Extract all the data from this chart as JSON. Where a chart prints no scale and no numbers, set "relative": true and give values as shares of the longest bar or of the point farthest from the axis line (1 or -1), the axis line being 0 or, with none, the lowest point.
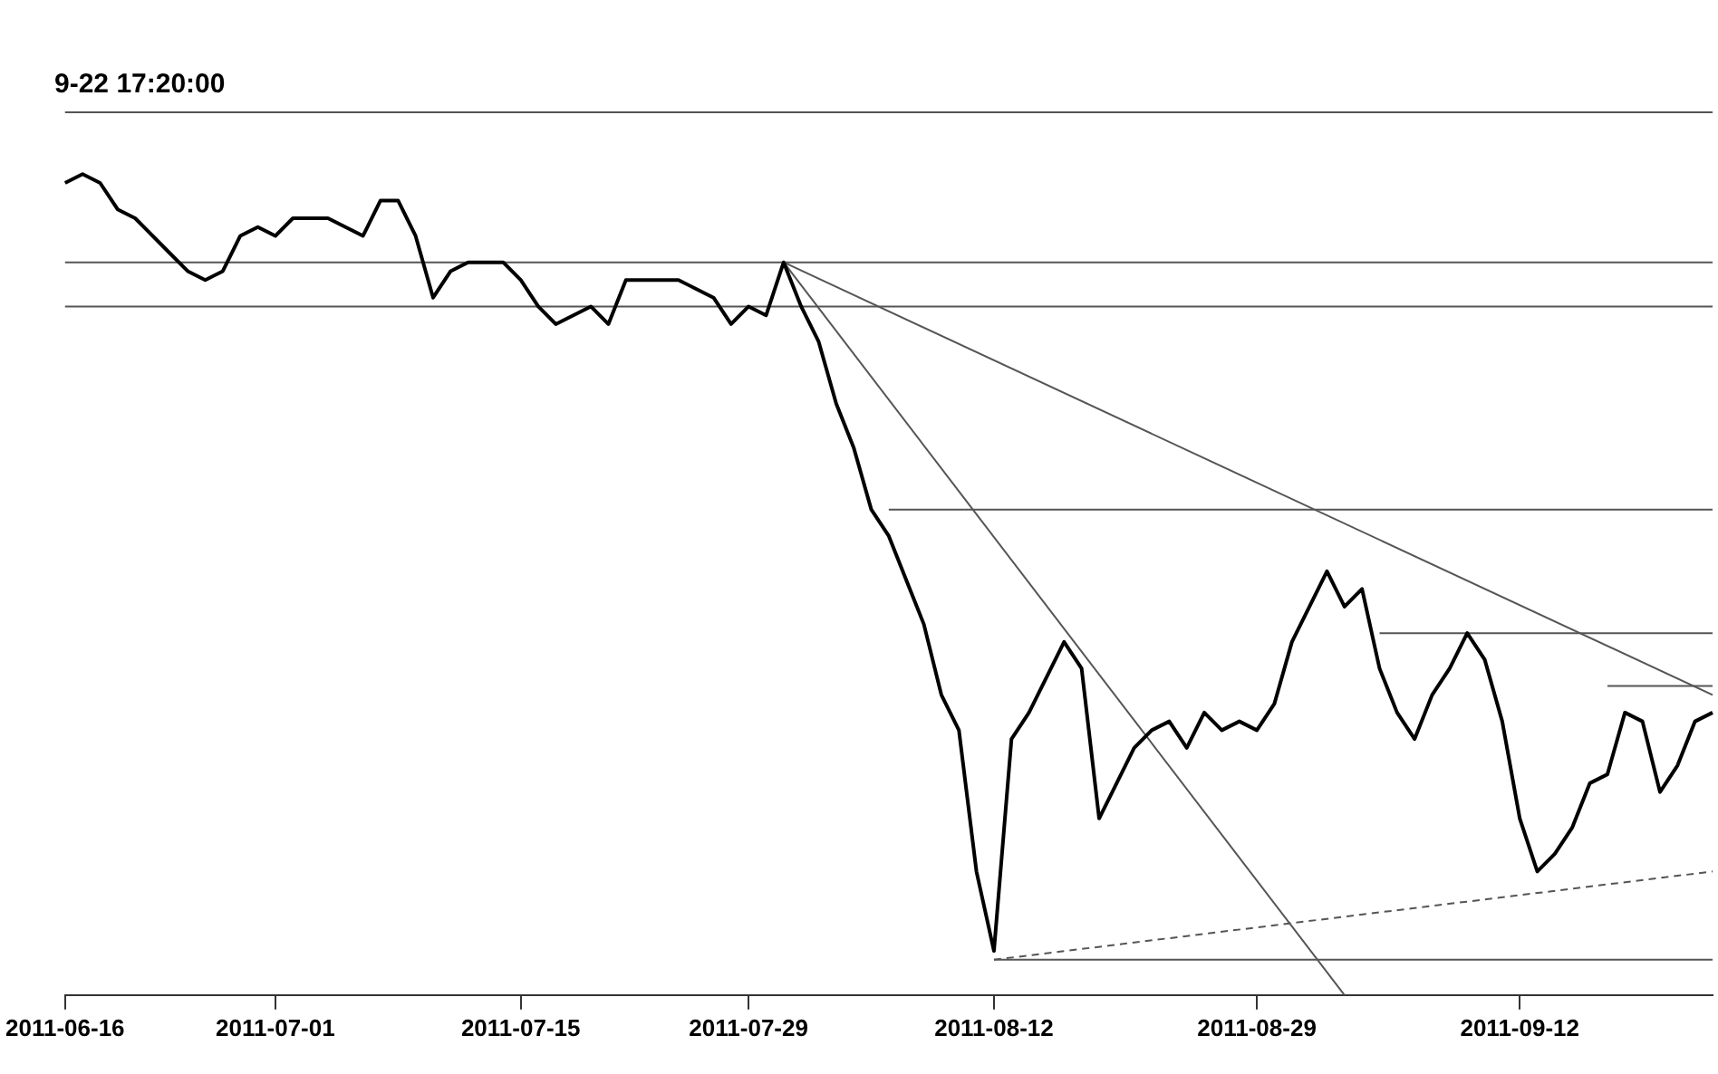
{
  "chart_data": {
    "type": "line",
    "title": "9-22 17:20:00",
    "relative": true,
    "legend": false,
    "marker": "none",
    "line_style": "solid",
    "categories": [
      "2011-06-16",
      null,
      null,
      null,
      null,
      null,
      null,
      null,
      null,
      null,
      null,
      null,
      "2011-07-01",
      null,
      null,
      null,
      null,
      null,
      null,
      null,
      null,
      null,
      null,
      null,
      null,
      null,
      "2011-07-15",
      null,
      null,
      null,
      null,
      null,
      null,
      null,
      null,
      null,
      null,
      null,
      null,
      "2011-07-29",
      null,
      null,
      null,
      null,
      null,
      null,
      null,
      null,
      null,
      null,
      null,
      null,
      null,
      "2011-08-12",
      null,
      null,
      null,
      null,
      null,
      null,
      null,
      null,
      null,
      null,
      null,
      null,
      null,
      null,
      "2011-08-29",
      null,
      null,
      null,
      null,
      null,
      null,
      null,
      null,
      null,
      null,
      null,
      null,
      null,
      null,
      "2011-09-12",
      null,
      null,
      null,
      null,
      null,
      null,
      null,
      null,
      null,
      null,
      null
    ],
    "series": [
      {
        "color": "#000000",
        "values": [
          0.92,
          0.93,
          0.92,
          0.89,
          0.88,
          0.86,
          0.84,
          0.82,
          0.81,
          0.82,
          0.86,
          0.87,
          0.86,
          0.88,
          0.88,
          0.88,
          0.87,
          0.86,
          0.9,
          0.9,
          0.86,
          0.79,
          0.82,
          0.83,
          0.83,
          0.83,
          0.81,
          0.78,
          0.76,
          0.77,
          0.78,
          0.76,
          0.81,
          0.81,
          0.81,
          0.81,
          0.8,
          0.79,
          0.76,
          0.78,
          0.77,
          0.83,
          0.78,
          0.74,
          0.67,
          0.62,
          0.55,
          0.52,
          0.47,
          0.42,
          0.34,
          0.3,
          0.14,
          0.05,
          0.29,
          0.32,
          0.36,
          0.4,
          0.37,
          0.2,
          0.24,
          0.28,
          0.3,
          0.31,
          0.28,
          0.32,
          0.3,
          0.31,
          0.3,
          0.33,
          0.4,
          0.44,
          0.48,
          0.44,
          0.46,
          0.37,
          0.32,
          0.29,
          0.34,
          0.37,
          0.41,
          0.38,
          0.31,
          0.2,
          0.14,
          0.16,
          0.19,
          0.24,
          0.25,
          0.32,
          0.31,
          0.23,
          0.26,
          0.31,
          0.32
        ]
      },
      {
        "color": "#555555",
        "values": [
          null,
          null,
          null,
          null,
          null,
          null,
          null,
          null,
          null,
          null,
          null,
          null,
          null,
          null,
          null,
          null,
          null,
          null,
          null,
          null,
          null,
          null,
          null,
          null,
          null,
          null,
          null,
          null,
          null,
          null,
          null,
          null,
          null,
          null,
          null,
          null,
          null,
          null,
          null,
          null,
          null,
          null,
          null,
          null,
          null,
          null,
          null,
          0.55,
          null,
          null,
          null,
          null,
          null,
          null,
          null,
          null,
          null,
          null,
          null,
          null,
          null,
          null,
          null,
          null,
          null,
          null,
          null,
          null,
          null,
          null,
          null,
          null,
          null,
          null,
          null,
          null,
          null,
          null,
          null,
          null,
          null,
          null,
          null,
          null,
          null,
          null,
          null,
          null,
          null,
          null,
          null,
          null,
          null,
          null,
          0.55
        ]
      },
      {
        "color": "#555555",
        "values": [
          null,
          null,
          null,
          null,
          null,
          null,
          null,
          null,
          null,
          null,
          null,
          null,
          null,
          null,
          null,
          null,
          null,
          null,
          null,
          null,
          null,
          null,
          null,
          null,
          null,
          null,
          null,
          null,
          null,
          null,
          null,
          null,
          null,
          null,
          null,
          null,
          null,
          null,
          null,
          null,
          null,
          null,
          null,
          null,
          null,
          null,
          null,
          null,
          null,
          null,
          null,
          null,
          null,
          null,
          null,
          null,
          null,
          null,
          null,
          null,
          null,
          null,
          null,
          null,
          null,
          null,
          null,
          null,
          null,
          null,
          null,
          null,
          null,
          null,
          null,
          0.41,
          null,
          null,
          null,
          null,
          null,
          null,
          null,
          null,
          null,
          null,
          null,
          null,
          null,
          null,
          null,
          null,
          null,
          null,
          0.41
        ]
      },
      {
        "color": "#555555",
        "values": [
          null,
          null,
          null,
          null,
          null,
          null,
          null,
          null,
          null,
          null,
          null,
          null,
          null,
          null,
          null,
          null,
          null,
          null,
          null,
          null,
          null,
          null,
          null,
          null,
          null,
          null,
          null,
          null,
          null,
          null,
          null,
          null,
          null,
          null,
          null,
          null,
          null,
          null,
          null,
          null,
          null,
          null,
          null,
          null,
          null,
          null,
          null,
          null,
          null,
          null,
          null,
          null,
          null,
          null,
          null,
          null,
          null,
          null,
          null,
          null,
          null,
          null,
          null,
          null,
          null,
          null,
          null,
          null,
          null,
          null,
          null,
          null,
          null,
          null,
          null,
          null,
          null,
          null,
          null,
          null,
          null,
          null,
          null,
          null,
          null,
          null,
          null,
          null,
          0.35,
          null,
          null,
          null,
          null,
          null,
          0.35
        ]
      },
      {
        "color": "#555555",
        "values": [
          null,
          null,
          null,
          null,
          null,
          null,
          null,
          null,
          null,
          null,
          null,
          null,
          null,
          null,
          null,
          null,
          null,
          null,
          null,
          null,
          null,
          null,
          null,
          null,
          null,
          null,
          null,
          null,
          null,
          null,
          null,
          null,
          null,
          null,
          null,
          null,
          null,
          null,
          null,
          null,
          null,
          null,
          null,
          null,
          null,
          null,
          null,
          null,
          null,
          null,
          null,
          null,
          null,
          0.04,
          null,
          null,
          null,
          null,
          null,
          null,
          null,
          null,
          null,
          null,
          null,
          null,
          null,
          null,
          null,
          null,
          null,
          null,
          null,
          null,
          null,
          null,
          null,
          null,
          null,
          null,
          null,
          null,
          null,
          null,
          null,
          null,
          null,
          null,
          null,
          null,
          null,
          null,
          null,
          null,
          0.04
        ]
      },
      {
        "color": "#555555",
        "values": [
          null,
          null,
          null,
          null,
          null,
          null,
          null,
          null,
          null,
          null,
          null,
          null,
          null,
          null,
          null,
          null,
          null,
          null,
          null,
          null,
          null,
          null,
          null,
          null,
          null,
          null,
          null,
          null,
          null,
          null,
          null,
          null,
          null,
          null,
          null,
          null,
          null,
          null,
          null,
          null,
          null,
          0.83,
          null,
          null,
          null,
          null,
          null,
          null,
          null,
          null,
          null,
          null,
          null,
          null,
          null,
          null,
          null,
          null,
          null,
          null,
          null,
          null,
          null,
          null,
          null,
          null,
          null,
          null,
          null,
          null,
          null,
          null,
          null,
          null,
          null,
          null,
          null,
          null,
          null,
          null,
          null,
          null,
          null,
          null,
          null,
          null,
          null,
          null,
          null,
          null,
          null,
          null,
          null,
          null,
          0.34
        ]
      },
      {
        "color": "#555555",
        "values": [
          null,
          null,
          null,
          null,
          null,
          null,
          null,
          null,
          null,
          null,
          null,
          null,
          null,
          null,
          null,
          null,
          null,
          null,
          null,
          null,
          null,
          null,
          null,
          null,
          null,
          null,
          null,
          null,
          null,
          null,
          null,
          null,
          null,
          null,
          null,
          null,
          null,
          null,
          null,
          null,
          null,
          0.83,
          null,
          null,
          null,
          null,
          null,
          null,
          null,
          null,
          null,
          null,
          null,
          null,
          null,
          null,
          null,
          null,
          null,
          null,
          null,
          null,
          null,
          null,
          null,
          null,
          null,
          null,
          null,
          null,
          null,
          null,
          null,
          0,
          null,
          null,
          null,
          null,
          null,
          null,
          null,
          null,
          null,
          null,
          null,
          null,
          null,
          null,
          null,
          null,
          null,
          null,
          null,
          null,
          null
        ]
      },
      {
        "color": "#555555",
        "values": [
          1,
          null,
          null,
          null,
          null,
          null,
          null,
          null,
          null,
          null,
          null,
          null,
          null,
          null,
          null,
          null,
          null,
          null,
          null,
          null,
          null,
          null,
          null,
          null,
          null,
          null,
          null,
          null,
          null,
          null,
          null,
          null,
          null,
          null,
          null,
          null,
          null,
          null,
          null,
          null,
          null,
          null,
          null,
          null,
          null,
          null,
          null,
          null,
          null,
          null,
          null,
          null,
          null,
          null,
          null,
          null,
          null,
          null,
          null,
          null,
          null,
          null,
          null,
          null,
          null,
          null,
          null,
          null,
          null,
          null,
          null,
          null,
          null,
          null,
          null,
          null,
          null,
          null,
          null,
          null,
          null,
          null,
          null,
          null,
          null,
          null,
          null,
          null,
          null,
          null,
          null,
          null,
          null,
          null,
          1
        ]
      },
      {
        "color": "#555555",
        "values": [
          0.83,
          null,
          null,
          null,
          null,
          null,
          null,
          null,
          null,
          null,
          null,
          null,
          null,
          null,
          null,
          null,
          null,
          null,
          null,
          null,
          null,
          null,
          null,
          null,
          null,
          null,
          null,
          null,
          null,
          null,
          null,
          null,
          null,
          null,
          null,
          null,
          null,
          null,
          null,
          null,
          null,
          null,
          null,
          null,
          null,
          null,
          null,
          null,
          null,
          null,
          null,
          null,
          null,
          null,
          null,
          null,
          null,
          null,
          null,
          null,
          null,
          null,
          null,
          null,
          null,
          null,
          null,
          null,
          null,
          null,
          null,
          null,
          null,
          null,
          null,
          null,
          null,
          null,
          null,
          null,
          null,
          null,
          null,
          null,
          null,
          null,
          null,
          null,
          null,
          null,
          null,
          null,
          null,
          null,
          0.83
        ]
      },
      {
        "color": "#555555",
        "values": [
          0.78,
          null,
          null,
          null,
          null,
          null,
          null,
          null,
          null,
          null,
          null,
          null,
          null,
          null,
          null,
          null,
          null,
          null,
          null,
          null,
          null,
          null,
          null,
          null,
          null,
          null,
          null,
          null,
          null,
          null,
          null,
          null,
          null,
          null,
          null,
          null,
          null,
          null,
          null,
          null,
          null,
          null,
          null,
          null,
          null,
          null,
          null,
          null,
          null,
          null,
          null,
          null,
          null,
          null,
          null,
          null,
          null,
          null,
          null,
          null,
          null,
          null,
          null,
          null,
          null,
          null,
          null,
          null,
          null,
          null,
          null,
          null,
          null,
          null,
          null,
          null,
          null,
          null,
          null,
          null,
          null,
          null,
          null,
          null,
          null,
          null,
          null,
          null,
          null,
          null,
          null,
          null,
          null,
          null,
          0.78
        ]
      },
      {
        "color": "#555555",
        "line_style": "dashed",
        "values": [
          null,
          null,
          null,
          null,
          null,
          null,
          null,
          null,
          null,
          null,
          null,
          null,
          null,
          null,
          null,
          null,
          null,
          null,
          null,
          null,
          null,
          null,
          null,
          null,
          null,
          null,
          null,
          null,
          null,
          null,
          null,
          null,
          null,
          null,
          null,
          null,
          null,
          null,
          null,
          null,
          null,
          null,
          null,
          null,
          null,
          null,
          null,
          null,
          null,
          null,
          null,
          null,
          null,
          0.04,
          null,
          null,
          null,
          null,
          null,
          null,
          null,
          null,
          null,
          null,
          null,
          null,
          null,
          null,
          null,
          null,
          null,
          null,
          null,
          null,
          null,
          null,
          null,
          null,
          null,
          null,
          null,
          null,
          null,
          null,
          null,
          null,
          null,
          null,
          null,
          null,
          null,
          null,
          null,
          null,
          0.14
        ]
      }
    ]
  }
}
